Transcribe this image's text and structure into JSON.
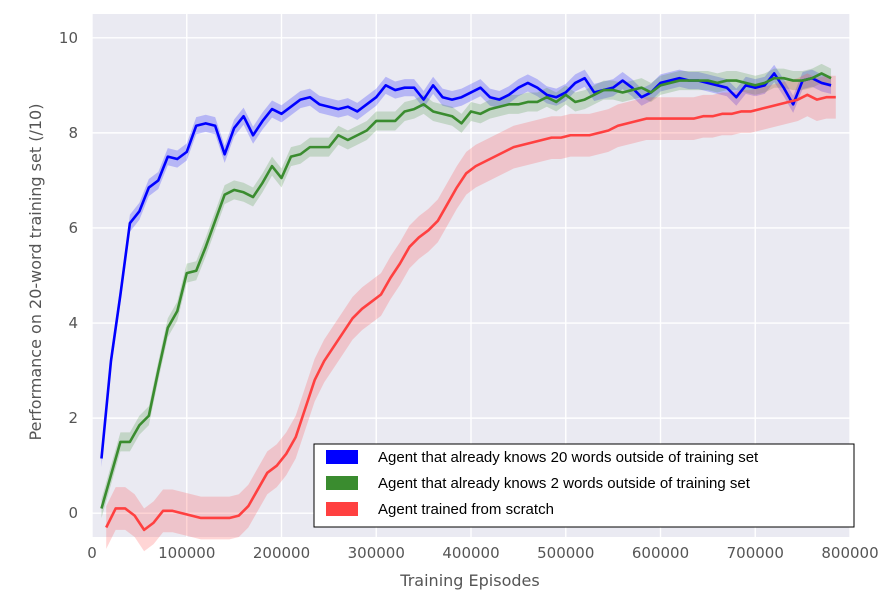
{
  "chart_data": {
    "type": "line",
    "title": "",
    "xlabel": "Training Episodes",
    "ylabel": "Performance on 20-word training set (/10)",
    "xlim": [
      0,
      800000
    ],
    "ylim": [
      -0.5,
      10.5
    ],
    "xticks": [
      0,
      100000,
      200000,
      300000,
      400000,
      500000,
      600000,
      700000,
      800000
    ],
    "xtick_labels": [
      "0",
      "100000",
      "200000",
      "300000",
      "400000",
      "500000",
      "600000",
      "700000",
      "800000"
    ],
    "yticks": [
      0,
      2,
      4,
      6,
      8,
      10
    ],
    "ytick_labels": [
      "0",
      "2",
      "4",
      "6",
      "8",
      "10"
    ],
    "grid": true,
    "background": "#eaeaf2",
    "legend_position": "bottom-right",
    "series": [
      {
        "name": "Agent that already knows 20 words outside of training set",
        "color": "#0000ff",
        "x": [
          10000,
          20000,
          30000,
          40000,
          50000,
          60000,
          70000,
          80000,
          90000,
          100000,
          110000,
          120000,
          130000,
          140000,
          150000,
          160000,
          170000,
          180000,
          190000,
          200000,
          210000,
          220000,
          230000,
          240000,
          250000,
          260000,
          270000,
          280000,
          290000,
          300000,
          310000,
          320000,
          330000,
          340000,
          350000,
          360000,
          370000,
          380000,
          390000,
          400000,
          410000,
          420000,
          430000,
          440000,
          450000,
          460000,
          470000,
          480000,
          490000,
          500000,
          510000,
          520000,
          530000,
          540000,
          550000,
          560000,
          570000,
          580000,
          590000,
          600000,
          610000,
          620000,
          630000,
          640000,
          650000,
          660000,
          670000,
          680000,
          690000,
          700000,
          710000,
          720000,
          730000,
          740000,
          750000,
          760000,
          770000,
          780000
        ],
        "y": [
          1.15,
          3.2,
          4.6,
          6.1,
          6.35,
          6.85,
          7.0,
          7.5,
          7.45,
          7.6,
          8.15,
          8.2,
          8.15,
          7.55,
          8.1,
          8.35,
          7.95,
          8.25,
          8.5,
          8.4,
          8.55,
          8.7,
          8.75,
          8.6,
          8.55,
          8.5,
          8.55,
          8.45,
          8.6,
          8.75,
          9.0,
          8.9,
          8.95,
          8.95,
          8.7,
          9.0,
          8.75,
          8.7,
          8.75,
          8.85,
          8.95,
          8.75,
          8.7,
          8.8,
          8.95,
          9.05,
          8.95,
          8.8,
          8.75,
          8.85,
          9.05,
          9.15,
          8.85,
          8.9,
          8.95,
          9.1,
          8.95,
          8.75,
          8.85,
          9.05,
          9.1,
          9.15,
          9.1,
          9.1,
          9.05,
          9.0,
          8.95,
          8.75,
          9.0,
          8.95,
          9.0,
          9.25,
          8.95,
          8.6,
          9.1,
          9.15,
          9.05,
          9.0
        ],
        "band": 0.18
      },
      {
        "name": "Agent that already knows 2 words outside of training set",
        "color": "#3a8c2f",
        "x": [
          10000,
          20000,
          30000,
          40000,
          50000,
          60000,
          70000,
          80000,
          90000,
          100000,
          110000,
          120000,
          130000,
          140000,
          150000,
          160000,
          170000,
          180000,
          190000,
          200000,
          210000,
          220000,
          230000,
          240000,
          250000,
          260000,
          270000,
          280000,
          290000,
          300000,
          310000,
          320000,
          330000,
          340000,
          350000,
          360000,
          370000,
          380000,
          390000,
          400000,
          410000,
          420000,
          430000,
          440000,
          450000,
          460000,
          470000,
          480000,
          490000,
          500000,
          510000,
          520000,
          530000,
          540000,
          550000,
          560000,
          570000,
          580000,
          590000,
          600000,
          610000,
          620000,
          630000,
          640000,
          650000,
          660000,
          670000,
          680000,
          690000,
          700000,
          710000,
          720000,
          730000,
          740000,
          750000,
          760000,
          770000,
          780000
        ],
        "y": [
          0.1,
          0.8,
          1.5,
          1.5,
          1.85,
          2.05,
          3.0,
          3.9,
          4.25,
          5.05,
          5.1,
          5.6,
          6.15,
          6.7,
          6.8,
          6.75,
          6.65,
          6.95,
          7.3,
          7.05,
          7.5,
          7.55,
          7.7,
          7.7,
          7.7,
          7.95,
          7.85,
          7.95,
          8.05,
          8.25,
          8.25,
          8.25,
          8.45,
          8.5,
          8.6,
          8.45,
          8.4,
          8.35,
          8.2,
          8.45,
          8.4,
          8.5,
          8.55,
          8.6,
          8.6,
          8.65,
          8.65,
          8.75,
          8.65,
          8.8,
          8.65,
          8.7,
          8.8,
          8.9,
          8.9,
          8.85,
          8.9,
          8.95,
          8.85,
          9.0,
          9.05,
          9.1,
          9.1,
          9.1,
          9.1,
          9.05,
          9.1,
          9.1,
          9.05,
          9.0,
          9.05,
          9.15,
          9.15,
          9.1,
          9.1,
          9.15,
          9.25,
          9.15
        ],
        "band": 0.2
      },
      {
        "name": "Agent trained from scratch",
        "color": "#ff4040",
        "x": [
          15000,
          25000,
          35000,
          45000,
          55000,
          65000,
          75000,
          85000,
          95000,
          105000,
          115000,
          125000,
          135000,
          145000,
          155000,
          165000,
          175000,
          185000,
          195000,
          205000,
          215000,
          225000,
          235000,
          245000,
          255000,
          265000,
          275000,
          285000,
          295000,
          305000,
          315000,
          325000,
          335000,
          345000,
          355000,
          365000,
          375000,
          385000,
          395000,
          405000,
          415000,
          425000,
          435000,
          445000,
          455000,
          465000,
          475000,
          485000,
          495000,
          505000,
          515000,
          525000,
          535000,
          545000,
          555000,
          565000,
          575000,
          585000,
          595000,
          605000,
          615000,
          625000,
          635000,
          645000,
          655000,
          665000,
          675000,
          685000,
          695000,
          705000,
          715000,
          725000,
          735000,
          745000,
          755000,
          765000,
          775000,
          785000
        ],
        "y": [
          -0.3,
          0.1,
          0.1,
          -0.05,
          -0.35,
          -0.2,
          0.05,
          0.05,
          0.0,
          -0.05,
          -0.1,
          -0.1,
          -0.1,
          -0.1,
          -0.05,
          0.15,
          0.5,
          0.85,
          1.0,
          1.25,
          1.6,
          2.2,
          2.8,
          3.2,
          3.5,
          3.8,
          4.1,
          4.3,
          4.45,
          4.6,
          4.95,
          5.25,
          5.6,
          5.8,
          5.95,
          6.15,
          6.5,
          6.85,
          7.15,
          7.3,
          7.4,
          7.5,
          7.6,
          7.7,
          7.75,
          7.8,
          7.85,
          7.9,
          7.9,
          7.95,
          7.95,
          7.95,
          8.0,
          8.05,
          8.15,
          8.2,
          8.25,
          8.3,
          8.3,
          8.3,
          8.3,
          8.3,
          8.3,
          8.35,
          8.35,
          8.4,
          8.4,
          8.45,
          8.45,
          8.5,
          8.55,
          8.6,
          8.65,
          8.7,
          8.8,
          8.7,
          8.75,
          8.75
        ],
        "band": 0.45
      }
    ]
  }
}
